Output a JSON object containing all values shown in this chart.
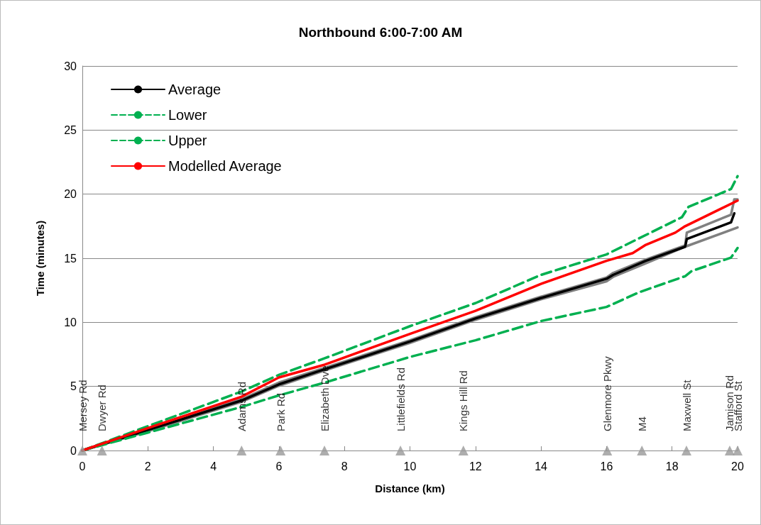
{
  "chart_data": {
    "type": "line",
    "title": "Northbound 6:00-7:00 AM",
    "xlabel": "Distance (km)",
    "ylabel": "Time (minutes)",
    "xlim": [
      0,
      20
    ],
    "xticks": [
      0,
      2,
      4,
      6,
      8,
      10,
      12,
      14,
      16,
      18,
      20
    ],
    "ylim": [
      0,
      30
    ],
    "yticks": [
      0,
      5,
      10,
      15,
      20,
      25,
      30
    ],
    "grid": "y",
    "legend": "top left",
    "marker": "none",
    "line_style": "solid",
    "series": [
      {
        "color": "#808080",
        "x": [
          0,
          2,
          4.86,
          6,
          7.4,
          10,
          12,
          14,
          16,
          16.2,
          17.2,
          18.4,
          18.45,
          19.8,
          19.9,
          20
        ],
        "values": [
          0,
          1.7,
          4.0,
          5.3,
          6.45,
          8.6,
          10.4,
          12.0,
          13.5,
          13.85,
          14.9,
          16.0,
          17.0,
          18.4,
          19.6,
          19.6
        ]
      },
      {
        "color": "#808080",
        "x": [
          0,
          2,
          4.86,
          6,
          7.4,
          10,
          12,
          14,
          16,
          16.2,
          17.2,
          18.4,
          20
        ],
        "values": [
          0,
          1.5,
          3.8,
          5.05,
          6.25,
          8.4,
          10.2,
          11.8,
          13.2,
          13.55,
          14.6,
          15.9,
          17.4
        ]
      },
      {
        "name": "Average",
        "color": "#000000",
        "x": [
          0,
          2,
          4.86,
          6,
          7.4,
          10,
          12,
          14,
          16,
          16.2,
          17.2,
          18.4,
          18.45,
          19.8,
          19.9
        ],
        "values": [
          0,
          1.6,
          3.9,
          5.16,
          6.34,
          8.5,
          10.3,
          11.9,
          13.4,
          13.7,
          14.8,
          15.9,
          16.5,
          17.8,
          18.5
        ]
      },
      {
        "name": "Lower",
        "color": "#00b050",
        "line_style": "dashed",
        "x": [
          0,
          2,
          4.86,
          6,
          7.4,
          10,
          12,
          14,
          16,
          17,
          18.4,
          18.6,
          19.8,
          20
        ],
        "values": [
          0,
          1.4,
          3.4,
          4.3,
          5.3,
          7.3,
          8.6,
          10.1,
          11.2,
          12.35,
          13.6,
          14.0,
          15.05,
          15.8
        ]
      },
      {
        "name": "Upper",
        "color": "#00b050",
        "line_style": "dashed",
        "x": [
          0,
          2,
          4.86,
          6,
          7.4,
          10,
          12,
          14,
          16,
          18.3,
          18.5,
          19.8,
          20
        ],
        "values": [
          0,
          1.9,
          4.6,
          5.9,
          7.2,
          9.7,
          11.5,
          13.7,
          15.3,
          18.2,
          19.0,
          20.4,
          21.4
        ]
      },
      {
        "name": "Modelled Average",
        "color": "#ff0000",
        "x": [
          0,
          2,
          4.86,
          6,
          7.4,
          10,
          12,
          14,
          16,
          16.8,
          17.2,
          18.1,
          18.4,
          20
        ],
        "values": [
          0,
          1.75,
          4.2,
          5.7,
          6.7,
          9.1,
          10.9,
          13.0,
          14.8,
          15.4,
          16.05,
          17.0,
          17.5,
          19.5
        ]
      },
      {
        "type": "scatter",
        "marker": "triangle",
        "color": "#999999",
        "x": [
          0,
          0.6,
          4.86,
          6.05,
          7.39,
          9.71,
          11.63,
          16.02,
          17.08,
          18.44,
          19.76,
          20.0
        ],
        "values": [
          0,
          0,
          0,
          0,
          0,
          0,
          0,
          0,
          0,
          0,
          0,
          0
        ],
        "value_labels": [
          "Mersey Rd",
          "Dwyer Rd",
          "Adams Rd",
          "Park Rd",
          "Elizabeth Dve",
          "Littlefields Rd",
          "Kings Hill Rd",
          "Glenmore Pkwy",
          "M4",
          "Maxwell St",
          "Jamison Rd",
          "Stafford St"
        ]
      }
    ]
  }
}
